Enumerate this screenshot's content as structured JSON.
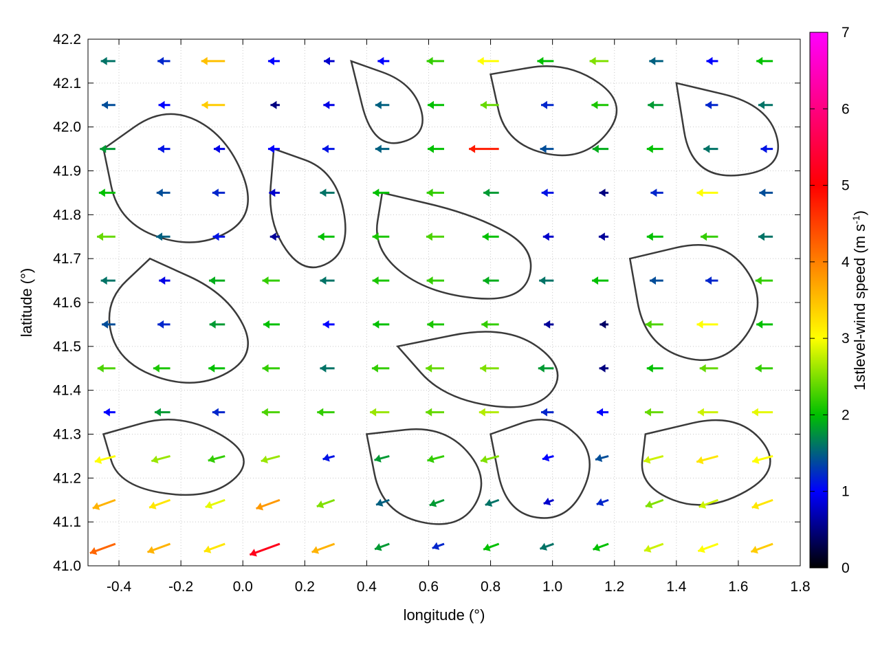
{
  "chart_data": {
    "type": "vector-field",
    "xlabel": "longitude (°)",
    "ylabel": "latitude (°)",
    "colorbar_label_main": "1stlevel-wind speed (m s",
    "colorbar_label_sup": "-1",
    "colorbar_label_close": ")",
    "xlim": [
      -0.5,
      1.8
    ],
    "ylim": [
      41.0,
      42.2
    ],
    "xticks": [
      "-0.4",
      "-0.2",
      "0.0",
      "0.2",
      "0.4",
      "0.6",
      "0.8",
      "1.0",
      "1.2",
      "1.4",
      "1.6",
      "1.8"
    ],
    "xtick_values": [
      -0.4,
      -0.2,
      0.0,
      0.2,
      0.4,
      0.6,
      0.8,
      1.0,
      1.2,
      1.4,
      1.6,
      1.8
    ],
    "yticks": [
      "41.0",
      "41.1",
      "41.2",
      "41.3",
      "41.4",
      "41.5",
      "41.6",
      "41.7",
      "41.8",
      "41.9",
      "42.0",
      "42.1",
      "42.2"
    ],
    "ytick_values": [
      41.0,
      41.1,
      41.2,
      41.3,
      41.4,
      41.5,
      41.6,
      41.7,
      41.8,
      41.9,
      42.0,
      42.1,
      42.2
    ],
    "colorbar_ticks": [
      "0",
      "1",
      "2",
      "3",
      "4",
      "5",
      "6",
      "7"
    ],
    "colorbar_tick_values": [
      0,
      1,
      2,
      3,
      4,
      5,
      6,
      7
    ],
    "colorbar_range": [
      0,
      7
    ],
    "colormap": [
      "#000000",
      "#0000ff",
      "#00c000",
      "#ffff00",
      "#ff8000",
      "#ff0000",
      "#ff00ff"
    ],
    "grid": true,
    "legend": "right",
    "vector_rows": [
      {
        "lat": 42.15,
        "dir": 180,
        "speed": [
          1.6,
          1.2,
          3.5,
          1.0,
          0.8,
          1.0,
          2.2,
          3.0,
          2.0,
          2.5,
          1.5,
          1.0,
          2.0
        ]
      },
      {
        "lat": 42.05,
        "dir": 180,
        "speed": [
          1.4,
          1.0,
          3.4,
          0.5,
          0.9,
          1.5,
          2.0,
          2.4,
          1.2,
          2.1,
          1.8,
          1.2,
          1.6
        ]
      },
      {
        "lat": 41.95,
        "dir": 180,
        "speed": [
          1.8,
          1.1,
          0.9,
          1.0,
          1.1,
          1.5,
          2.0,
          4.8,
          1.4,
          1.9,
          2.0,
          1.6,
          1.1
        ]
      },
      {
        "lat": 41.85,
        "dir": 180,
        "speed": [
          2.0,
          1.4,
          1.2,
          0.8,
          1.6,
          2.0,
          2.2,
          1.8,
          1.1,
          0.5,
          1.2,
          3.0,
          1.4
        ]
      },
      {
        "lat": 41.75,
        "dir": 180,
        "speed": [
          2.4,
          1.5,
          1.1,
          0.6,
          2.0,
          2.1,
          2.3,
          2.0,
          0.8,
          0.6,
          2.0,
          2.2,
          1.6
        ]
      },
      {
        "lat": 41.65,
        "dir": 180,
        "speed": [
          1.6,
          0.9,
          1.9,
          2.2,
          1.6,
          2.1,
          2.2,
          1.9,
          1.6,
          2.0,
          1.4,
          1.2,
          2.2
        ]
      },
      {
        "lat": 41.55,
        "dir": 180,
        "speed": [
          1.4,
          1.2,
          1.8,
          2.0,
          1.0,
          2.0,
          2.1,
          2.2,
          0.6,
          0.4,
          2.3,
          3.0,
          2.0
        ]
      },
      {
        "lat": 41.45,
        "dir": 180,
        "speed": [
          2.3,
          2.1,
          2.0,
          2.2,
          1.6,
          2.2,
          2.4,
          2.5,
          1.8,
          0.5,
          2.0,
          2.4,
          2.2
        ]
      },
      {
        "lat": 41.35,
        "dir": 180,
        "speed": [
          1.0,
          1.8,
          1.2,
          2.3,
          2.2,
          2.6,
          2.4,
          2.7,
          1.2,
          1.0,
          2.4,
          2.8,
          2.9
        ]
      },
      {
        "lat": 41.25,
        "dir": 195,
        "speed": [
          3.0,
          2.6,
          2.2,
          2.6,
          1.1,
          1.8,
          2.2,
          2.5,
          1.0,
          1.4,
          2.8,
          3.2,
          3.0
        ]
      },
      {
        "lat": 41.15,
        "dir": 200,
        "speed": [
          3.6,
          3.2,
          2.9,
          3.8,
          2.5,
          1.5,
          1.8,
          1.6,
          0.8,
          1.2,
          2.5,
          2.8,
          3.2
        ]
      },
      {
        "lat": 41.05,
        "dir": 200,
        "speed": [
          4.2,
          3.6,
          3.2,
          5.2,
          3.6,
          1.8,
          1.2,
          2.0,
          1.6,
          2.0,
          2.8,
          3.0,
          3.4
        ]
      }
    ]
  }
}
